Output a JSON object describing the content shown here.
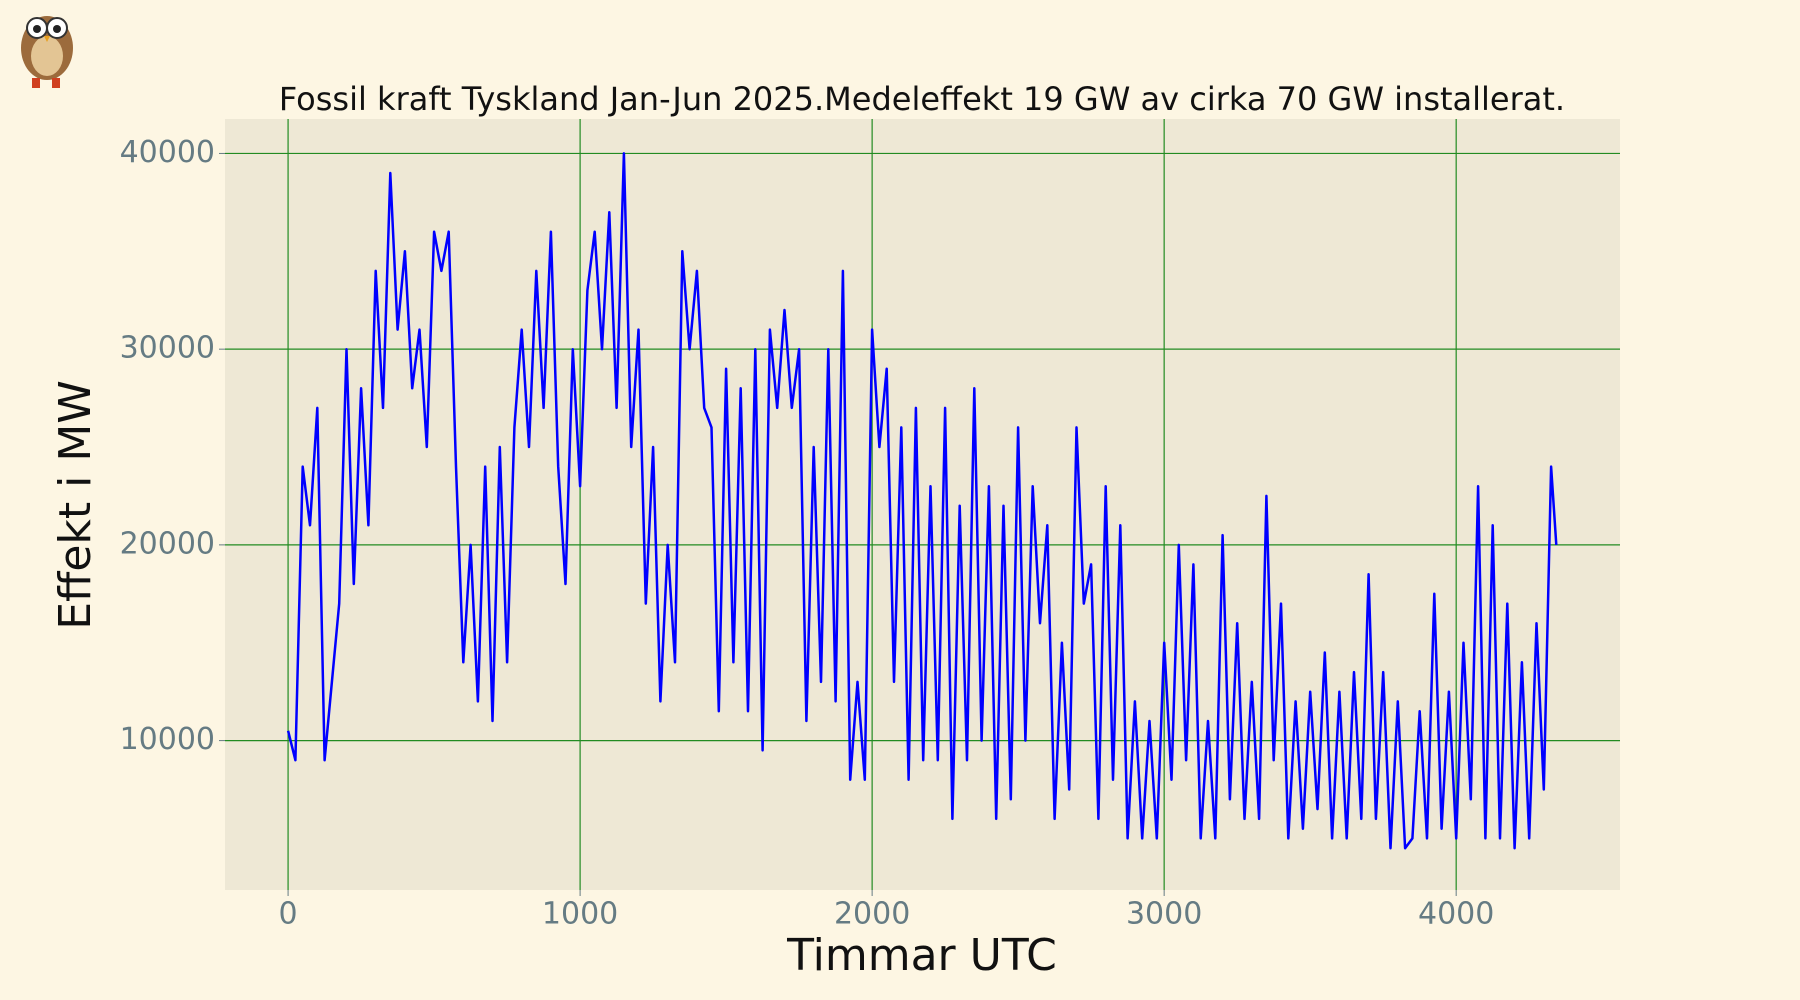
{
  "chart_data": {
    "type": "line",
    "title": "Fossil kraft Tyskland Jan-Jun 2025.Medeleffekt 19 GW av cirka 70 GW installerat.",
    "xlabel": "Timmar UTC",
    "ylabel": "Effekt i MW",
    "xlim": [
      -216,
      4561
    ],
    "ylim": [
      2366,
      41760
    ],
    "xticks": [
      0,
      1000,
      2000,
      3000,
      4000
    ],
    "yticks": [
      10000,
      20000,
      30000,
      40000
    ],
    "grid": true,
    "series": [
      {
        "color": "#0000ff",
        "x": [
          0,
          25,
          50,
          75,
          100,
          125,
          150,
          175,
          200,
          225,
          250,
          275,
          300,
          325,
          350,
          375,
          400,
          425,
          450,
          475,
          500,
          525,
          550,
          575,
          600,
          625,
          650,
          675,
          700,
          725,
          750,
          775,
          800,
          825,
          850,
          875,
          900,
          925,
          950,
          975,
          1000,
          1025,
          1050,
          1075,
          1100,
          1125,
          1150,
          1175,
          1200,
          1225,
          1250,
          1275,
          1300,
          1325,
          1350,
          1375,
          1400,
          1425,
          1450,
          1475,
          1500,
          1525,
          1550,
          1575,
          1600,
          1625,
          1650,
          1675,
          1700,
          1725,
          1750,
          1775,
          1800,
          1825,
          1850,
          1875,
          1900,
          1925,
          1950,
          1975,
          2000,
          2025,
          2050,
          2075,
          2100,
          2125,
          2150,
          2175,
          2200,
          2225,
          2250,
          2275,
          2300,
          2325,
          2350,
          2375,
          2400,
          2425,
          2450,
          2475,
          2500,
          2525,
          2550,
          2575,
          2600,
          2625,
          2650,
          2675,
          2700,
          2725,
          2750,
          2775,
          2800,
          2825,
          2850,
          2875,
          2900,
          2925,
          2950,
          2975,
          3000,
          3025,
          3050,
          3075,
          3100,
          3125,
          3150,
          3175,
          3200,
          3225,
          3250,
          3275,
          3300,
          3325,
          3350,
          3375,
          3400,
          3425,
          3450,
          3475,
          3500,
          3525,
          3550,
          3575,
          3600,
          3625,
          3650,
          3675,
          3700,
          3725,
          3750,
          3775,
          3800,
          3825,
          3850,
          3875,
          3900,
          3925,
          3950,
          3975,
          4000,
          4025,
          4050,
          4075,
          4100,
          4125,
          4150,
          4175,
          4200,
          4225,
          4250,
          4275,
          4300,
          4325,
          4343
        ],
        "values": [
          10500,
          9000,
          24000,
          21000,
          27000,
          9000,
          13000,
          17000,
          30000,
          18000,
          28000,
          21000,
          34000,
          27000,
          39000,
          31000,
          35000,
          28000,
          31000,
          25000,
          36000,
          34000,
          36000,
          24000,
          14000,
          20000,
          12000,
          24000,
          11000,
          25000,
          14000,
          26000,
          31000,
          25000,
          34000,
          27000,
          36000,
          24000,
          18000,
          30000,
          23000,
          33000,
          36000,
          30000,
          37000,
          27000,
          40000,
          25000,
          31000,
          17000,
          25000,
          12000,
          20000,
          14000,
          35000,
          30000,
          34000,
          27000,
          26000,
          11500,
          29000,
          14000,
          28000,
          11500,
          30000,
          9500,
          31000,
          27000,
          32000,
          27000,
          30000,
          11000,
          25000,
          13000,
          30000,
          12000,
          34000,
          8000,
          13000,
          8000,
          31000,
          25000,
          29000,
          13000,
          26000,
          8000,
          27000,
          9000,
          23000,
          9000,
          27000,
          6000,
          22000,
          9000,
          28000,
          10000,
          23000,
          6000,
          22000,
          7000,
          26000,
          10000,
          23000,
          16000,
          21000,
          6000,
          15000,
          7500,
          26000,
          17000,
          19000,
          6000,
          23000,
          8000,
          21000,
          5000,
          12000,
          5000,
          11000,
          5000,
          15000,
          8000,
          20000,
          9000,
          19000,
          5000,
          11000,
          5000,
          20500,
          7000,
          16000,
          6000,
          13000,
          6000,
          22500,
          9000,
          17000,
          5000,
          12000,
          5500,
          12500,
          6500,
          14500,
          5000,
          12500,
          5000,
          13500,
          6000,
          18500,
          6000,
          13500,
          4500,
          12000,
          4500,
          5000,
          11500,
          5000,
          17500,
          5500,
          12500,
          5000,
          15000,
          7000,
          23000,
          5000,
          21000,
          5000,
          17000,
          4500,
          14000,
          5000,
          16000,
          7500,
          24000,
          20000
        ]
      }
    ]
  }
}
